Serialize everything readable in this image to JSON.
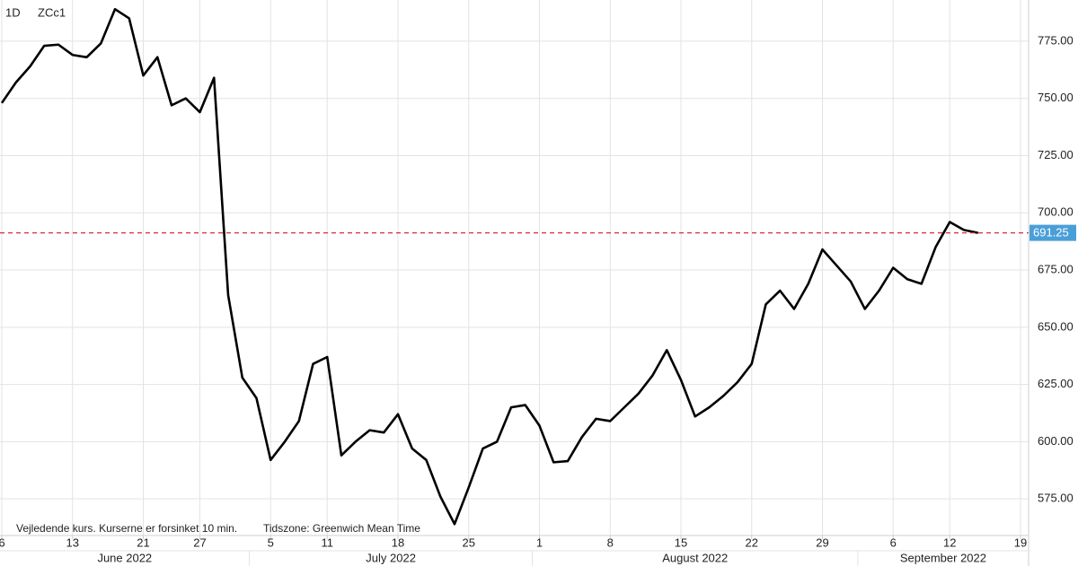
{
  "header": {
    "interval": "1D",
    "symbol": "ZCc1"
  },
  "notes": [
    "Vejledende kurs. Kurserne er forsinket 10 min.",
    "Tidszone: Greenwich Mean Time"
  ],
  "chart_data": {
    "type": "line",
    "x": [
      "2022-06-06",
      "2022-06-07",
      "2022-06-08",
      "2022-06-09",
      "2022-06-10",
      "2022-06-13",
      "2022-06-14",
      "2022-06-15",
      "2022-06-16",
      "2022-06-17",
      "2022-06-21",
      "2022-06-22",
      "2022-06-23",
      "2022-06-24",
      "2022-06-27",
      "2022-06-28",
      "2022-06-29",
      "2022-06-30",
      "2022-07-01",
      "2022-07-05",
      "2022-07-06",
      "2022-07-07",
      "2022-07-08",
      "2022-07-11",
      "2022-07-12",
      "2022-07-13",
      "2022-07-14",
      "2022-07-15",
      "2022-07-18",
      "2022-07-19",
      "2022-07-20",
      "2022-07-21",
      "2022-07-22",
      "2022-07-25",
      "2022-07-26",
      "2022-07-27",
      "2022-07-28",
      "2022-07-29",
      "2022-08-01",
      "2022-08-02",
      "2022-08-03",
      "2022-08-04",
      "2022-08-05",
      "2022-08-08",
      "2022-08-09",
      "2022-08-10",
      "2022-08-11",
      "2022-08-12",
      "2022-08-15",
      "2022-08-16",
      "2022-08-17",
      "2022-08-18",
      "2022-08-19",
      "2022-08-22",
      "2022-08-23",
      "2022-08-24",
      "2022-08-25",
      "2022-08-26",
      "2022-08-29",
      "2022-08-30",
      "2022-08-31",
      "2022-09-01",
      "2022-09-02",
      "2022-09-06",
      "2022-09-07",
      "2022-09-08",
      "2022-09-09",
      "2022-09-12",
      "2022-09-13",
      "2022-09-14"
    ],
    "values": [
      748,
      757,
      764,
      773,
      773.5,
      769,
      768,
      774,
      789,
      785,
      760,
      768,
      747,
      750,
      744,
      759,
      664,
      628,
      619,
      592,
      600,
      609,
      634,
      637,
      594,
      600,
      605,
      604,
      612,
      597,
      592,
      576,
      564,
      580,
      597,
      600,
      615,
      616,
      607,
      591,
      591.5,
      602,
      610,
      609,
      615,
      621,
      629,
      640,
      627,
      611,
      615,
      620,
      626,
      634,
      660,
      666,
      658,
      669,
      684,
      677,
      670,
      658,
      666,
      676,
      671,
      669,
      685,
      696,
      692.5,
      691.25
    ],
    "color": "#000000",
    "last_line_color": "#d62f2f",
    "last_badge_color": "#4a9fd8",
    "months": [
      "June 2022",
      "July 2022",
      "August 2022",
      "September 2022"
    ],
    "xticks": [
      {
        "value": "2022-06-06",
        "label": "6"
      },
      {
        "value": "2022-06-13",
        "label": "13"
      },
      {
        "value": "2022-06-21",
        "label": "21"
      },
      {
        "value": "2022-06-27",
        "label": "27"
      },
      {
        "value": "2022-07-05",
        "label": "5"
      },
      {
        "value": "2022-07-11",
        "label": "11"
      },
      {
        "value": "2022-07-18",
        "label": "18"
      },
      {
        "value": "2022-07-25",
        "label": "25"
      },
      {
        "value": "2022-08-01",
        "label": "1"
      },
      {
        "value": "2022-08-08",
        "label": "8"
      },
      {
        "value": "2022-08-15",
        "label": "15"
      },
      {
        "value": "2022-08-22",
        "label": "22"
      },
      {
        "value": "2022-08-29",
        "label": "29"
      },
      {
        "value": "2022-09-06",
        "label": "6"
      },
      {
        "value": "2022-09-12",
        "label": "12"
      },
      {
        "value": "2022-09-19",
        "label": "19"
      }
    ],
    "ylim": [
      559,
      793
    ],
    "yticks": [
      {
        "value": 575,
        "label": "575.00"
      },
      {
        "value": 600,
        "label": "600.00"
      },
      {
        "value": 625,
        "label": "625.00"
      },
      {
        "value": 650,
        "label": "650.00"
      },
      {
        "value": 675,
        "label": "675.00"
      },
      {
        "value": 700,
        "label": "700.00"
      },
      {
        "value": 725,
        "label": "725.00"
      },
      {
        "value": 750,
        "label": "750.00"
      },
      {
        "value": 775,
        "label": "775.00"
      }
    ],
    "grid": true
  }
}
